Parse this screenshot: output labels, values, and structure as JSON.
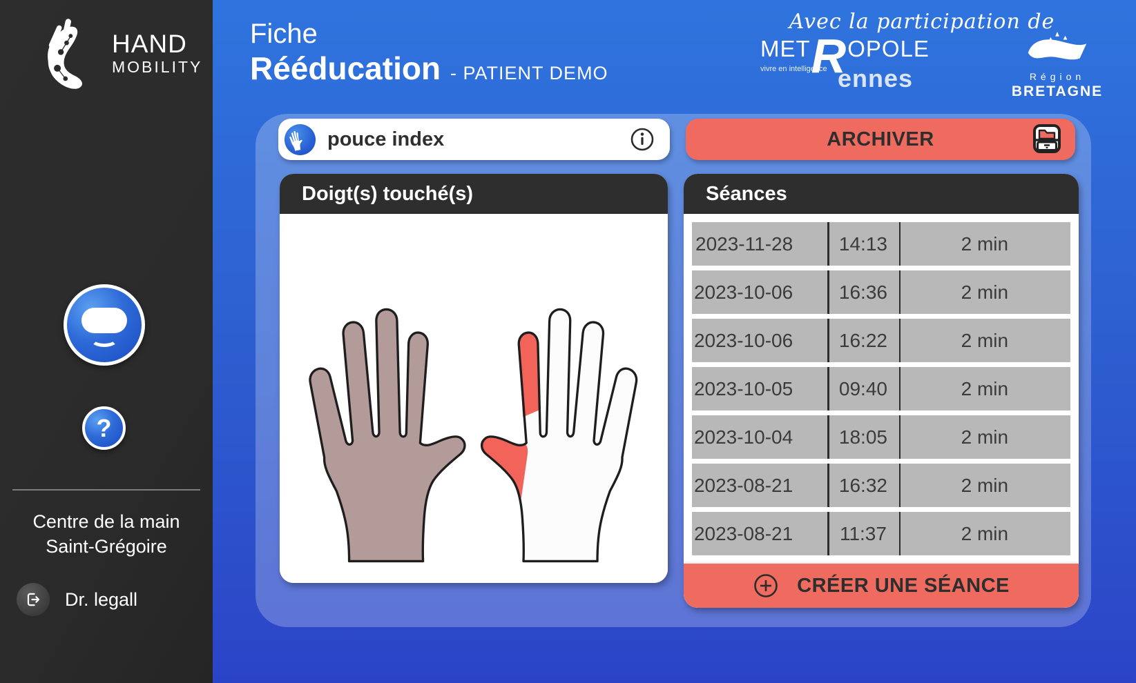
{
  "sidebar": {
    "logo_line1": "HAND",
    "logo_line2": "MOBILITY",
    "clinic_line1": "Centre de la main",
    "clinic_line2": "Saint-Grégoire",
    "user_name": "Dr. legall",
    "help_glyph": "?"
  },
  "header": {
    "title_prefix": "Fiche",
    "title": "Rééducation",
    "patient": "- PATIENT DEMO",
    "participation": "Avec la participation de",
    "metropole": {
      "line1_pre": "MET",
      "big_r": "R",
      "line1_post": "OPOLE",
      "line2": "ennes",
      "tagline": "vivre en intelligence"
    },
    "region": {
      "label": "Région",
      "name": "BRETAGNE"
    }
  },
  "exercise_card": {
    "label": "pouce index"
  },
  "archive_button": {
    "label": "ARCHIVER"
  },
  "fingers_panel": {
    "title": "Doigt(s) touché(s)"
  },
  "sessions_panel": {
    "title": "Séances",
    "create_label": "CRÉER UNE SÉANCE",
    "rows": [
      {
        "date": "2023-11-28",
        "time": "14:13",
        "duration": "2 min"
      },
      {
        "date": "2023-10-06",
        "time": "16:36",
        "duration": "2 min"
      },
      {
        "date": "2023-10-06",
        "time": "16:22",
        "duration": "2 min"
      },
      {
        "date": "2023-10-05",
        "time": "09:40",
        "duration": "2 min"
      },
      {
        "date": "2023-10-04",
        "time": "18:05",
        "duration": "2 min"
      },
      {
        "date": "2023-08-21",
        "time": "16:32",
        "duration": "2 min"
      },
      {
        "date": "2023-08-21",
        "time": "11:37",
        "duration": "2 min"
      }
    ]
  },
  "colors": {
    "accent_salmon": "#f06b5f",
    "primary_blue_top": "#2f74de",
    "primary_blue_bottom": "#2b44c7",
    "panel_dark": "#2e2e2e",
    "row_gray": "#b8b8b8",
    "hand_fill": "#b29b98",
    "touched_finger_red": "#f2635a"
  }
}
